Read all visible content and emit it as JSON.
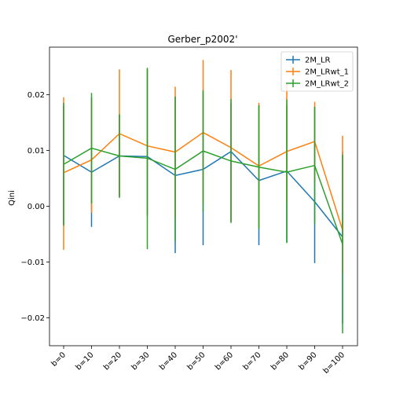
{
  "chart_data": {
    "type": "line",
    "title": "Gerber_p2002'",
    "xlabel": "",
    "ylabel": "Qini",
    "categories": [
      "b=0",
      "b=10",
      "b=20",
      "b=30",
      "b=40",
      "b=50",
      "b=60",
      "b=70",
      "b=80",
      "b=90",
      "b=100"
    ],
    "ylim": [
      -0.025,
      0.0285
    ],
    "yticks": [
      -0.02,
      -0.01,
      0.0,
      0.01,
      0.02
    ],
    "ytick_labels": [
      "−0.02",
      "−0.01",
      "0.00",
      "0.01",
      "0.02"
    ],
    "legend_position": "top-right",
    "grid": false,
    "series": [
      {
        "name": "2M_LR",
        "color": "#1f77b4",
        "values": [
          0.0091,
          0.0061,
          0.009,
          0.0089,
          0.0055,
          0.0066,
          0.0098,
          0.0046,
          0.0063,
          0.0008,
          -0.0055
        ],
        "err_low": [
          -0.0033,
          -0.0037,
          0.0018,
          -0.0017,
          -0.0084,
          -0.007,
          -0.0027,
          -0.007,
          -0.0065,
          -0.0102,
          -0.021
        ],
        "err_high": [
          0.018,
          0.0195,
          0.0163,
          0.0245,
          0.0197,
          0.0205,
          0.0185,
          0.018,
          0.018,
          0.0178,
          0.0098
        ]
      },
      {
        "name": "2M_LRwt_1",
        "color": "#ff7f0e",
        "values": [
          0.006,
          0.0083,
          0.013,
          0.0108,
          0.0097,
          0.0132,
          0.0105,
          0.0072,
          0.0098,
          0.0116,
          -0.0043
        ],
        "err_low": [
          -0.0078,
          -0.0012,
          0.0016,
          -0.0015,
          -0.002,
          0.0005,
          -0.0028,
          -0.004,
          0.0008,
          0.0045,
          -0.012
        ],
        "err_high": [
          0.0195,
          0.019,
          0.0245,
          0.0245,
          0.0214,
          0.0262,
          0.0244,
          0.0185,
          0.022,
          0.0187,
          0.0126
        ]
      },
      {
        "name": "2M_LRwt_2",
        "color": "#2ca02c",
        "values": [
          0.0075,
          0.0104,
          0.009,
          0.0086,
          0.0066,
          0.0099,
          0.0081,
          0.007,
          0.0061,
          0.0073,
          -0.0068
        ],
        "err_low": [
          -0.0035,
          0.0005,
          0.0015,
          -0.0077,
          -0.0063,
          -0.001,
          -0.003,
          -0.004,
          -0.0066,
          -0.0032,
          -0.0228
        ],
        "err_high": [
          0.0185,
          0.0203,
          0.0165,
          0.0248,
          0.0196,
          0.0208,
          0.0192,
          0.0181,
          0.0191,
          0.0178,
          0.0092
        ]
      }
    ]
  }
}
